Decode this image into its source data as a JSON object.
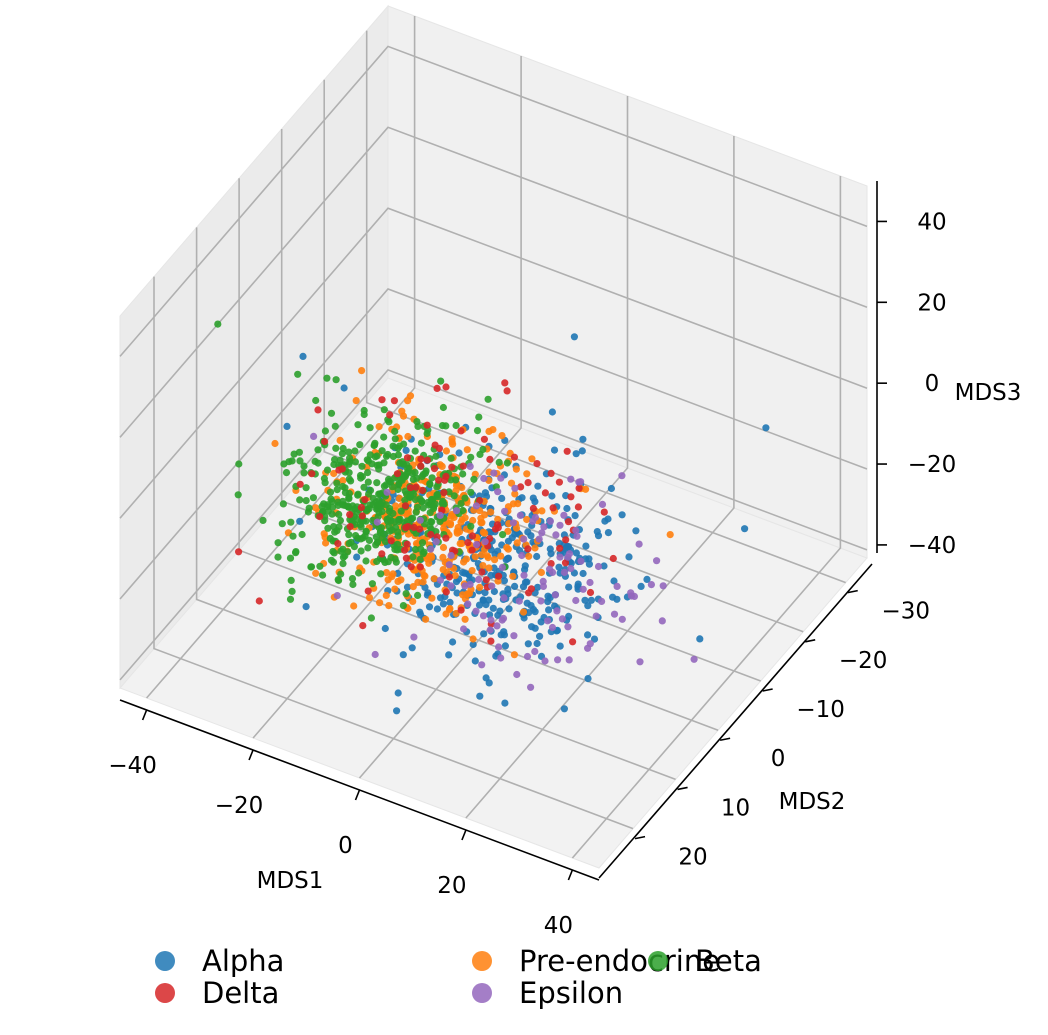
{
  "chart_data": {
    "type": "scatter",
    "projection": "3d",
    "title": "",
    "xlabel": "MDS1",
    "ylabel": "MDS2",
    "zlabel": "MDS3",
    "xlim": [
      -45,
      45
    ],
    "ylim": [
      -35,
      28
    ],
    "zlim": [
      -42,
      50
    ],
    "xticks": [
      -40,
      -20,
      0,
      20,
      40
    ],
    "yticks": [
      -30,
      -20,
      -10,
      0,
      10,
      20
    ],
    "zticks": [
      -40,
      -20,
      0,
      20,
      40
    ],
    "xtick_labels": [
      "−40",
      "−20",
      "0",
      "20",
      "40"
    ],
    "ytick_labels": [
      "−30",
      "−20",
      "−10",
      "0",
      "10",
      "20"
    ],
    "ztick_labels": [
      "−40",
      "−20",
      "0",
      "20",
      "40"
    ],
    "grid": true,
    "legend": {
      "placement": "bottom-center",
      "columns": 3
    },
    "series": [
      {
        "name": "Alpha",
        "color": "#1f77b4",
        "center": [
          5,
          2,
          -18
        ],
        "spread": [
          11,
          7,
          8
        ],
        "n": 350,
        "outliers": [
          [
            22,
            5,
            55
          ],
          [
            38,
            -20,
            5
          ],
          [
            -25,
            10,
            28
          ],
          [
            -40,
            -5,
            -15
          ],
          [
            30,
            -25,
            -30
          ]
        ]
      },
      {
        "name": "Pre-endocrine",
        "color": "#ff7f0e",
        "center": [
          5,
          18,
          10
        ],
        "spread": [
          9,
          6,
          7
        ],
        "n": 350,
        "outliers": [
          [
            -10,
            15,
            38
          ],
          [
            22,
            15,
            32
          ],
          [
            40,
            5,
            10
          ],
          [
            -15,
            10,
            22
          ]
        ]
      },
      {
        "name": "Beta",
        "color": "#2ca02c",
        "center": [
          -10,
          10,
          0
        ],
        "spread": [
          7,
          6,
          6
        ],
        "n": 450,
        "outliers": [
          [
            -45,
            5,
            20
          ],
          [
            -30,
            5,
            15
          ]
        ]
      },
      {
        "name": "Delta",
        "color": "#d62728",
        "center": [
          0,
          5,
          -5
        ],
        "spread": [
          13,
          8,
          8
        ],
        "n": 110,
        "outliers": []
      },
      {
        "name": "Epsilon",
        "color": "#9467bd",
        "center": [
          10,
          0,
          -20
        ],
        "spread": [
          11,
          8,
          7
        ],
        "n": 110,
        "outliers": [
          [
            -35,
            -5,
            -15
          ]
        ]
      }
    ]
  }
}
